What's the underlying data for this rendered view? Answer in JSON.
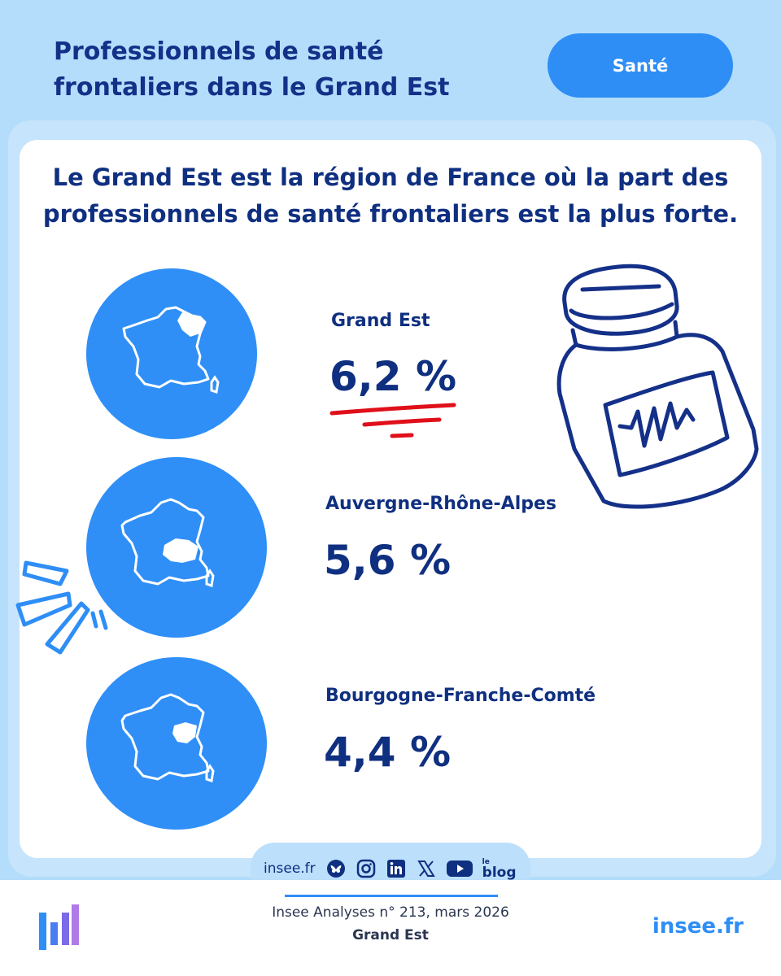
{
  "header": {
    "title": "Professionnels de santé frontaliers dans le Grand Est",
    "badge": "Santé"
  },
  "headline": "Le Grand Est est la région de France où la part des professionnels de santé frontaliers est la plus forte.",
  "regions": [
    {
      "name": "Grand Est",
      "value": "6,2 %"
    },
    {
      "name": "Auvergne-Rhône-Alpes",
      "value": "5,6 %"
    },
    {
      "name": "Bourgogne-Franche-Comté",
      "value": "4,4 %"
    }
  ],
  "footer": {
    "site": "insee.fr",
    "social_icons": [
      "bluesky-icon",
      "instagram-icon",
      "linkedin-icon",
      "x-icon",
      "youtube-icon",
      "blog-icon"
    ],
    "blog_small": "le",
    "blog_label": "blog",
    "publication": "Insee Analyses n° 213, mars 2026",
    "region": "Grand Est",
    "brand_url": "insee.fr"
  },
  "colors": {
    "background": "#b3ddfb",
    "accent": "#2e8ef6",
    "text": "#0f2f80",
    "underline": "#e0101a"
  }
}
